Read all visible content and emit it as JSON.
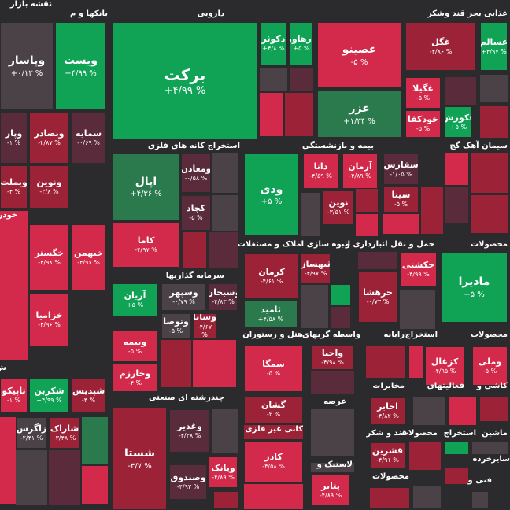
{
  "header": {
    "title": "نقشه بازار"
  },
  "sectors": [
    {
      "title": "بانکها و م",
      "tiles": [
        {
          "name": "وپاسار",
          "change": "+۰/۱۳ %"
        },
        {
          "name": "ویست",
          "change": "+۴/۹۹ %"
        },
        {
          "name": "وپار",
          "change": "-۱ %"
        },
        {
          "name": "وبصادر",
          "change": "-۲/۸۷ %"
        },
        {
          "name": "سمایه",
          "change": "-۰/۶۹ %"
        },
        {
          "name": "وبملت",
          "change": "-۴ %"
        },
        {
          "name": "ونوین",
          "change": "-۳/۸ %"
        }
      ]
    },
    {
      "title": "خودر",
      "tiles": [
        {
          "name": "خگستر",
          "change": "-۴/۹۸ %"
        },
        {
          "name": "خبهمن",
          "change": "-۴/۹۶ %"
        },
        {
          "name": "خزامیا",
          "change": "-۴/۹۶ %"
        }
      ]
    },
    {
      "title": "ش",
      "tiles": [
        {
          "name": "تاپیکو",
          "change": "-۱ %"
        },
        {
          "name": "شکربن",
          "change": "+۴/۹۹ %"
        },
        {
          "name": "شپدیس",
          "change": "-۴ %"
        },
        {
          "name": "زاگرس",
          "change": "-۲/۴۱ %"
        },
        {
          "name": "شاراک",
          "change": "-۳/۴۸ %"
        }
      ]
    },
    {
      "title": "دارویی",
      "tiles": [
        {
          "name": "برکت",
          "change": "+۴/۹۹ %"
        },
        {
          "name": "دکوثر",
          "change": "+۴/۸ %"
        },
        {
          "name": "درهاور",
          "change": "+۵ %"
        }
      ]
    },
    {
      "title": "غذایی بجز قند وشکر",
      "tiles": [
        {
          "name": "غصینو",
          "change": "-۵ %"
        },
        {
          "name": "غگل",
          "change": "-۴/۸۶ %"
        },
        {
          "name": "غسالم",
          "change": "+۴/۹۷ %"
        },
        {
          "name": "غزر",
          "change": "+۱/۳۴ %"
        },
        {
          "name": "غگیلا",
          "change": "-۵ %"
        },
        {
          "name": "خودکفا",
          "change": "-۵ %"
        },
        {
          "name": "غکورش",
          "change": "+۵ %"
        }
      ]
    },
    {
      "title": "استخراج کانه های فلزی",
      "tiles": [
        {
          "name": "اپال",
          "change": "+۴/۳۶ %"
        },
        {
          "name": "ومعادن",
          "change": "-۰/۵۸ %"
        },
        {
          "name": "کچاد",
          "change": "-۵ %"
        },
        {
          "name": "کاما",
          "change": "-۴/۹۷ %"
        }
      ]
    },
    {
      "title": "بیمه و بازنشستگی",
      "tiles": [
        {
          "name": "ودی",
          "change": "+۵ %"
        },
        {
          "name": "دانا",
          "change": "-۴/۵۹ %"
        },
        {
          "name": "آرمان",
          "change": "-۴/۸۹ %"
        },
        {
          "name": "نوین",
          "change": "-۳/۵۱ %"
        }
      ]
    },
    {
      "title": "سیمان آهک گچ",
      "tiles": [
        {
          "name": "سفارس",
          "change": "-۱/۰۵ %"
        },
        {
          "name": "سیتا",
          "change": "-۵ %"
        }
      ]
    },
    {
      "title": "سرمایه گذاریها",
      "tiles": [
        {
          "name": "آریان",
          "change": "+۵ %"
        },
        {
          "name": "وسپهر",
          "change": "-۰/۷۹ %"
        },
        {
          "name": "وسبحان",
          "change": "-۴/۸۳ %"
        },
        {
          "name": "وتوصا",
          "change": "-۵ %"
        },
        {
          "name": "وسانا",
          "change": "-۴/۶۷ %"
        },
        {
          "name": "وبیمه",
          "change": "-۵ %"
        },
        {
          "name": "وخارزم",
          "change": "-۴ %"
        }
      ]
    },
    {
      "title": "انبوه سازی املاک و مستغلات",
      "tiles": [
        {
          "name": "کرمان",
          "change": "-۴/۶۱ %"
        },
        {
          "name": "ثبهساز",
          "change": "-۴/۹۷ %"
        },
        {
          "name": "ثامید",
          "change": "+۴/۵۸ %"
        }
      ]
    },
    {
      "title": "حمل و نقل انبارداری و",
      "tiles": [
        {
          "name": "حکشتی",
          "change": "-۴/۹۹ %"
        },
        {
          "name": "حرهشا",
          "change": "-۰/۷۳ %"
        }
      ]
    },
    {
      "title": "محصولات",
      "tiles": [
        {
          "name": "مادیرا",
          "change": "+۵ %"
        }
      ]
    },
    {
      "title": "چندرشته ای صنعتی",
      "tiles": [
        {
          "name": "شستا",
          "change": "-۳/۷ %"
        },
        {
          "name": "وغدیر",
          "change": "-۴/۳۸ %"
        },
        {
          "name": "وبانک",
          "change": "-۴/۸۹ %"
        },
        {
          "name": "وصندوق",
          "change": "-۴/۹۳ %"
        }
      ]
    },
    {
      "title": "هتل و رستوران",
      "tiles": [
        {
          "name": "سمگا",
          "change": "-۵ %"
        }
      ]
    },
    {
      "title": "واسطه گریهای",
      "tiles": [
        {
          "name": "واحیا",
          "change": "-۴/۹۸ %"
        }
      ]
    },
    {
      "title": "رایانه",
      "tiles": []
    },
    {
      "title": "استخراج",
      "tiles": [
        {
          "name": "کزغال",
          "change": "-۴/۹۵ %"
        }
      ]
    },
    {
      "title": "محصولات",
      "tiles": [
        {
          "name": "وملی",
          "change": "-۵ %"
        }
      ]
    },
    {
      "title": "کانی غیر فلزی",
      "tiles": [
        {
          "name": "گشان",
          "change": "-۲ %"
        },
        {
          "name": "کاذر",
          "change": "-۴/۵۸ %"
        }
      ]
    },
    {
      "title": "عرضه",
      "tiles": []
    },
    {
      "title": "مخابرات",
      "tiles": [
        {
          "name": "اخابر",
          "change": "-۴/۸۲ %"
        }
      ]
    },
    {
      "title": "فعالیتهای",
      "tiles": []
    },
    {
      "title": "کاشی و",
      "tiles": []
    },
    {
      "title": "قند و شکر",
      "tiles": [
        {
          "name": "قشرین",
          "change": "-۴/۹۱ %"
        }
      ]
    },
    {
      "title": "محصولات",
      "tiles": []
    },
    {
      "title": "استخراج",
      "tiles": []
    },
    {
      "title": "ماشین",
      "tiles": []
    },
    {
      "title": "لاستیک و",
      "tiles": [
        {
          "name": "پتایر",
          "change": "-۴/۸۹ %"
        }
      ]
    },
    {
      "title": "محصولات",
      "tiles": []
    },
    {
      "title": "خرده",
      "tiles": []
    },
    {
      "title": "سایر",
      "tiles": []
    },
    {
      "title": "فنی و",
      "tiles": []
    }
  ]
}
